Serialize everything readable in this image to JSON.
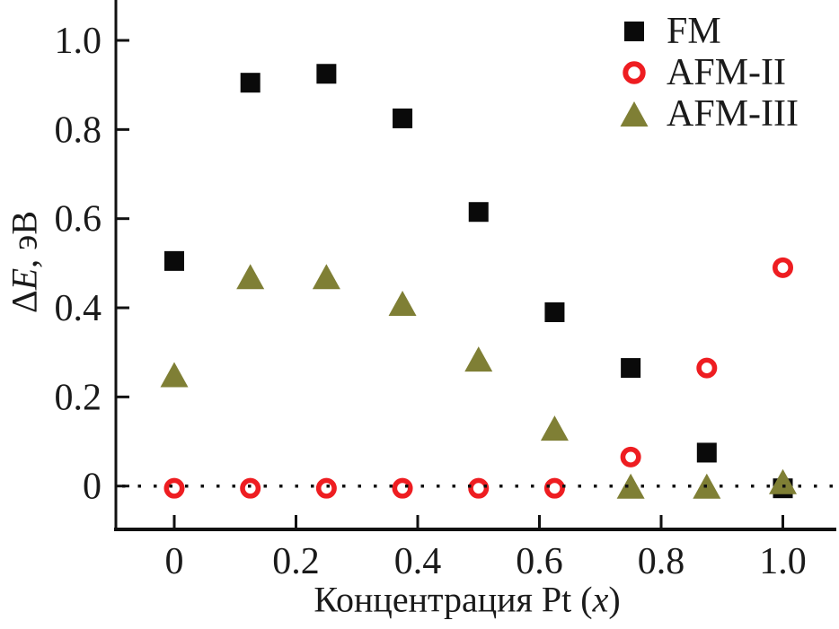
{
  "chart_data": {
    "type": "scatter",
    "title": "",
    "xlabel": "Концентрация Pt (x)",
    "ylabel": "ΔE, эВ",
    "xlabel_parts": {
      "prefix": "Концентрация Pt (",
      "variable": "x",
      "suffix": ")"
    },
    "ylabel_parts": {
      "prefix": "Δ",
      "variable": "E",
      "suffix": ", эВ"
    },
    "x": [
      0,
      0.125,
      0.25,
      0.375,
      0.5,
      0.625,
      0.75,
      0.875,
      1.0
    ],
    "series": [
      {
        "name": "FM",
        "marker": "filled-square",
        "color": "#0a0a0a",
        "values": [
          0.505,
          0.905,
          0.925,
          0.825,
          0.615,
          0.39,
          0.265,
          0.075,
          -0.005
        ]
      },
      {
        "name": "AFM-II",
        "marker": "open-circle",
        "color": "#ee1d21",
        "values": [
          -0.005,
          -0.005,
          -0.005,
          -0.005,
          -0.005,
          -0.005,
          0.065,
          0.265,
          0.49
        ]
      },
      {
        "name": "AFM-III",
        "marker": "filled-triangle",
        "color": "#7f7f35",
        "values": [
          0.25,
          0.47,
          0.47,
          0.41,
          0.285,
          0.13,
          0.0,
          0.0,
          0.01
        ]
      }
    ],
    "x_ticks": {
      "values": [
        0,
        0.2,
        0.4,
        0.6,
        0.8,
        1.0
      ],
      "labels": [
        "0",
        "0.2",
        "0.4",
        "0.6",
        "0.8",
        "1.0"
      ]
    },
    "y_ticks": {
      "values": [
        0,
        0.2,
        0.4,
        0.6,
        0.8,
        1.0
      ],
      "labels": [
        "0",
        "0.2",
        "0.4",
        "0.6",
        "0.8",
        "1.0"
      ]
    },
    "xlim": [
      -0.1,
      1.09
    ],
    "ylim": [
      -0.1,
      1.09
    ],
    "grid": false,
    "zero_line": {
      "value": 0,
      "style": "dotted",
      "color": "#111111"
    },
    "legend": {
      "position": "top-right"
    },
    "axis_color": "#111111",
    "background_color": "#ffffff"
  }
}
